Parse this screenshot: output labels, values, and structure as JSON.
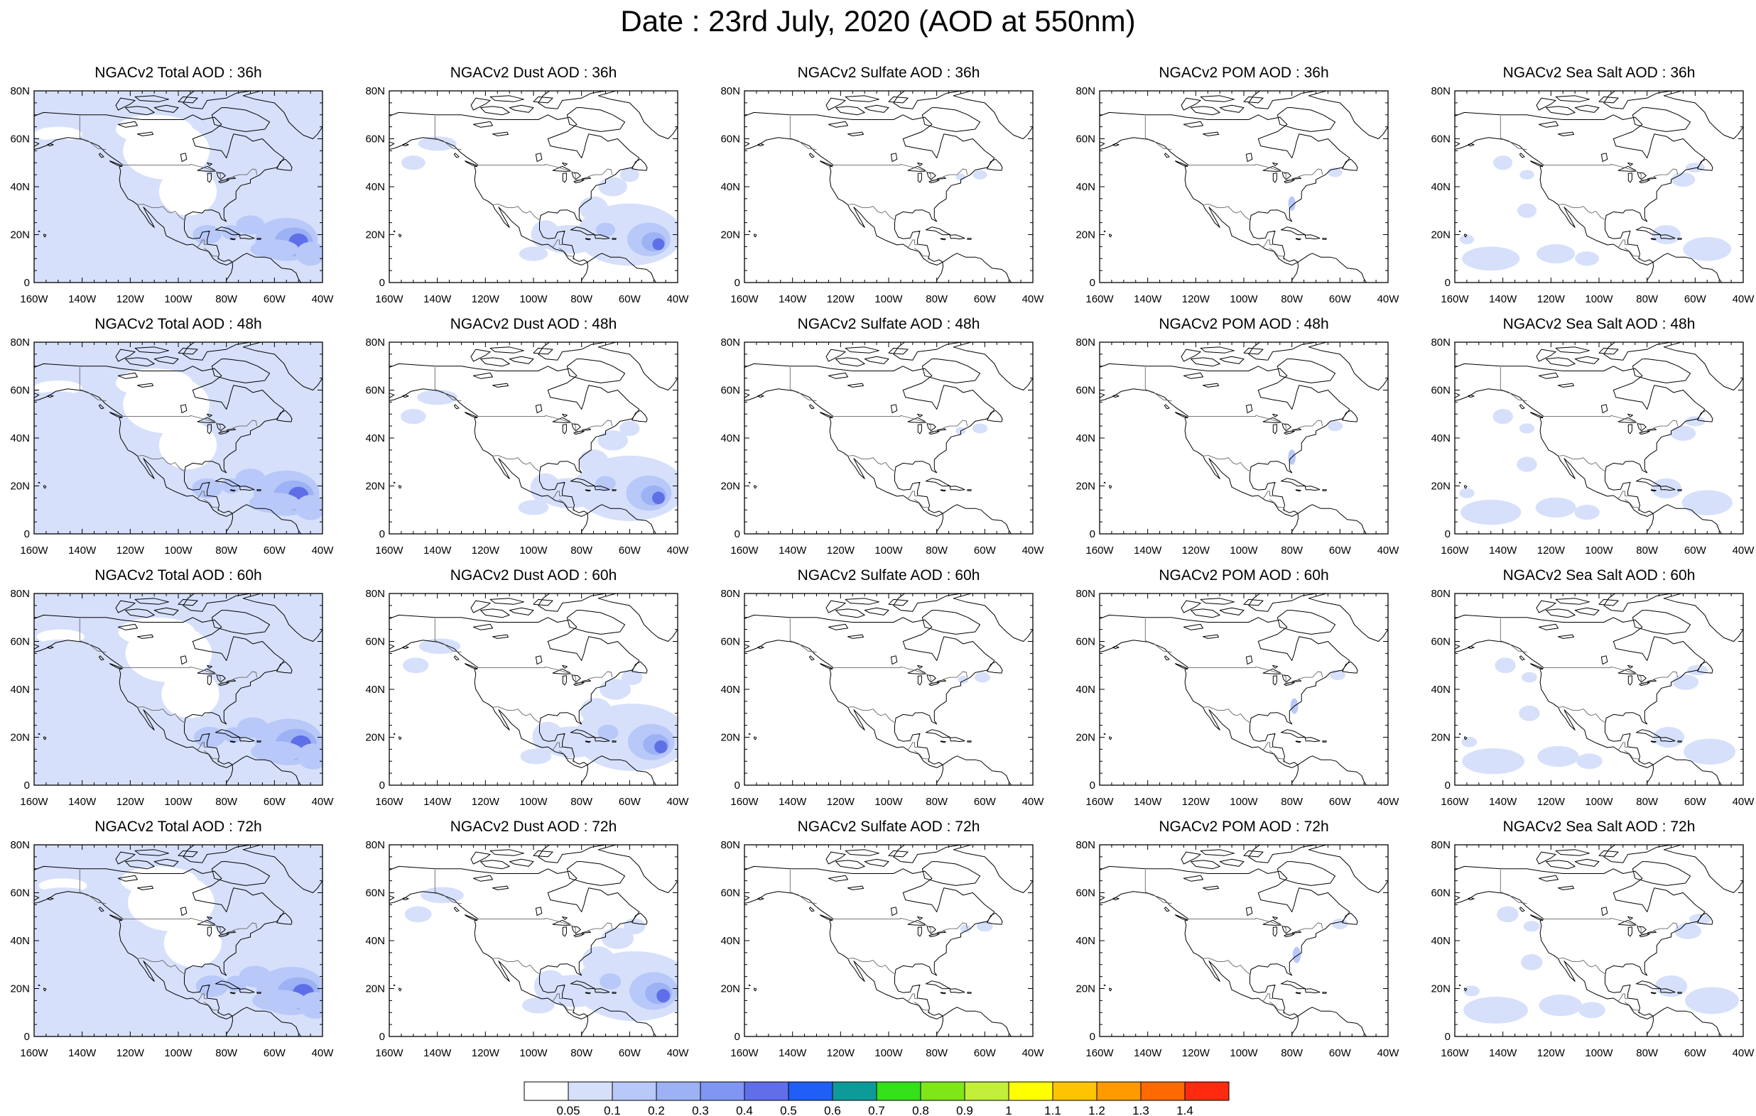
{
  "title": "Date : 23rd July, 2020 (AOD at 550nm)",
  "map": {
    "lon_range": [
      -160,
      -40
    ],
    "lat_range": [
      0,
      80
    ],
    "lon_ticks": [
      "160W",
      "140W",
      "120W",
      "100W",
      "80W",
      "60W",
      "40W"
    ],
    "lat_ticks": [
      "0",
      "20N",
      "40N",
      "60N",
      "80N"
    ]
  },
  "forecast_hours": [
    "36h",
    "48h",
    "60h",
    "72h"
  ],
  "panels": [
    [
      {
        "title": "NGACv2 Total AOD : 36h",
        "field": "total"
      },
      {
        "title": "NGACv2 Dust AOD : 36h",
        "field": "dust"
      },
      {
        "title": "NGACv2 Sulfate AOD : 36h",
        "field": "sulfate"
      },
      {
        "title": "NGACv2 POM AOD : 36h",
        "field": "pom"
      },
      {
        "title": "NGACv2 Sea Salt AOD : 36h",
        "field": "seasalt"
      }
    ],
    [
      {
        "title": "NGACv2 Total AOD : 48h",
        "field": "total"
      },
      {
        "title": "NGACv2 Dust AOD : 48h",
        "field": "dust"
      },
      {
        "title": "NGACv2 Sulfate AOD : 48h",
        "field": "sulfate"
      },
      {
        "title": "NGACv2 POM AOD : 48h",
        "field": "pom"
      },
      {
        "title": "NGACv2 Sea Salt AOD : 48h",
        "field": "seasalt"
      }
    ],
    [
      {
        "title": "NGACv2 Total AOD : 60h",
        "field": "total"
      },
      {
        "title": "NGACv2 Dust AOD : 60h",
        "field": "dust"
      },
      {
        "title": "NGACv2 Sulfate AOD : 60h",
        "field": "sulfate"
      },
      {
        "title": "NGACv2 POM AOD : 60h",
        "field": "pom"
      },
      {
        "title": "NGACv2 Sea Salt AOD : 60h",
        "field": "seasalt"
      }
    ],
    [
      {
        "title": "NGACv2 Total AOD : 72h",
        "field": "total"
      },
      {
        "title": "NGACv2 Dust AOD : 72h",
        "field": "dust"
      },
      {
        "title": "NGACv2 Sulfate AOD : 72h",
        "field": "sulfate"
      },
      {
        "title": "NGACv2 POM AOD : 72h",
        "field": "pom"
      },
      {
        "title": "NGACv2 Sea Salt  AOD : 72h",
        "field": "seasalt"
      }
    ]
  ],
  "colorbar": {
    "labels": [
      "0.05",
      "0.1",
      "0.2",
      "0.3",
      "0.4",
      "0.5",
      "0.6",
      "0.7",
      "0.8",
      "0.9",
      "1",
      "1.1",
      "1.2",
      "1.3",
      "1.4"
    ],
    "colors": [
      "#ffffff",
      "#d6e0fb",
      "#b8c8f8",
      "#9cb2f5",
      "#7f97f2",
      "#5f6fe8",
      "#1f5ff5",
      "#0f9a9a",
      "#33e01a",
      "#7fe61a",
      "#c2ef3a",
      "#ffff00",
      "#ffc400",
      "#ff9a00",
      "#ff6a00",
      "#ff2a10"
    ]
  }
}
